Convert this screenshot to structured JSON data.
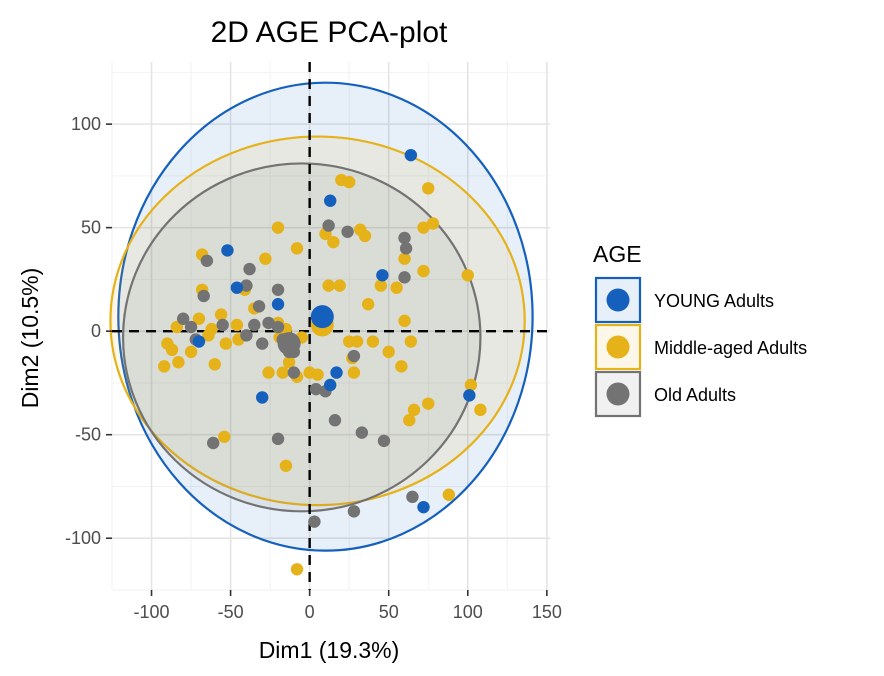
{
  "chart_data": {
    "type": "scatter",
    "title": "2D AGE PCA-plot",
    "xlabel": "Dim1 (19.3%)",
    "ylabel": "Dim2 (10.5%)",
    "xlim": [
      -125,
      152
    ],
    "ylim": [
      -125,
      130
    ],
    "x_ticks": [
      -100,
      -50,
      0,
      50,
      100,
      150
    ],
    "x_tick_labels": [
      "-100",
      "-50",
      "0",
      "50",
      "100",
      "150"
    ],
    "y_ticks": [
      -100,
      -50,
      0,
      50,
      100
    ],
    "y_tick_labels": [
      "-100",
      "-50",
      "0",
      "50",
      "100"
    ],
    "grid": true,
    "reference_lines": {
      "x": 0,
      "y": 0,
      "style": "dashed"
    },
    "legend": {
      "title": "AGE",
      "position": "right"
    },
    "series": [
      {
        "name": "YOUNG Adults",
        "color": "#1560bd",
        "ellipse": {
          "cx": 10,
          "cy": 7,
          "rx": 131,
          "ry": 113
        },
        "centroid": [
          8,
          7
        ],
        "points": [
          [
            64,
            85
          ],
          [
            13,
            63
          ],
          [
            -52,
            39
          ],
          [
            -46,
            21
          ],
          [
            -20,
            13
          ],
          [
            46,
            27
          ],
          [
            101,
            -31
          ],
          [
            -30,
            -32
          ],
          [
            17,
            -20
          ],
          [
            13,
            -26
          ],
          [
            72,
            -85
          ],
          [
            -70,
            -5
          ]
        ]
      },
      {
        "name": "Middle-aged Adults",
        "color": "#e6b21a",
        "ellipse": {
          "cx": 5,
          "cy": 5,
          "rx": 131,
          "ry": 89
        },
        "centroid": [
          8,
          3
        ],
        "points": [
          [
            20,
            73
          ],
          [
            25,
            72
          ],
          [
            75,
            69
          ],
          [
            78,
            52
          ],
          [
            72,
            50
          ],
          [
            -20,
            50
          ],
          [
            10,
            47
          ],
          [
            32,
            49
          ],
          [
            35,
            46
          ],
          [
            -8,
            40
          ],
          [
            -68,
            37
          ],
          [
            -28,
            35
          ],
          [
            15,
            43
          ],
          [
            60,
            35
          ],
          [
            100,
            27
          ],
          [
            72,
            29
          ],
          [
            -68,
            20
          ],
          [
            -41,
            20
          ],
          [
            12,
            22
          ],
          [
            19,
            22
          ],
          [
            45,
            22
          ],
          [
            55,
            21
          ],
          [
            37,
            13
          ],
          [
            -56,
            8
          ],
          [
            -35,
            11
          ],
          [
            -70,
            6
          ],
          [
            -46,
            3
          ],
          [
            -62,
            1
          ],
          [
            -84,
            2
          ],
          [
            -20,
            4
          ],
          [
            -15,
            1
          ],
          [
            -5,
            -3
          ],
          [
            -90,
            -6
          ],
          [
            -87,
            -9
          ],
          [
            -64,
            -2
          ],
          [
            -45,
            -4
          ],
          [
            -53,
            -6
          ],
          [
            -75,
            -10
          ],
          [
            -83,
            -15
          ],
          [
            -92,
            -17
          ],
          [
            -60,
            -16
          ],
          [
            -13,
            -15
          ],
          [
            -26,
            -20
          ],
          [
            -17,
            -20
          ],
          [
            -8,
            -22
          ],
          [
            0,
            -20
          ],
          [
            5,
            -21
          ],
          [
            25,
            -5
          ],
          [
            28,
            -20
          ],
          [
            30,
            -5
          ],
          [
            40,
            -5
          ],
          [
            50,
            -10
          ],
          [
            58,
            -17
          ],
          [
            60,
            5
          ],
          [
            64,
            -5
          ],
          [
            75,
            -35
          ],
          [
            66,
            -38
          ],
          [
            63,
            -43
          ],
          [
            102,
            -26
          ],
          [
            108,
            -38
          ],
          [
            88,
            -79
          ],
          [
            -54,
            -51
          ],
          [
            -15,
            -65
          ],
          [
            -8,
            -115
          ],
          [
            -19,
            -3
          ],
          [
            27,
            -13
          ]
        ]
      },
      {
        "name": "Old Adults",
        "color": "#737373",
        "ellipse": {
          "cx": -5,
          "cy": -3,
          "rx": 113,
          "ry": 84
        },
        "centroid": [
          -13,
          -6
        ],
        "points": [
          [
            -65,
            34
          ],
          [
            -38,
            30
          ],
          [
            -40,
            22
          ],
          [
            -20,
            20
          ],
          [
            -67,
            17
          ],
          [
            -32,
            12
          ],
          [
            12,
            51
          ],
          [
            24,
            48
          ],
          [
            60,
            45
          ],
          [
            61,
            40
          ],
          [
            60,
            26
          ],
          [
            -80,
            6
          ],
          [
            -75,
            2
          ],
          [
            -55,
            3
          ],
          [
            -35,
            3
          ],
          [
            -26,
            4
          ],
          [
            -20,
            2
          ],
          [
            -17,
            -4
          ],
          [
            -40,
            -2
          ],
          [
            -72,
            -4
          ],
          [
            -10,
            -20
          ],
          [
            4,
            -28
          ],
          [
            16,
            -43
          ],
          [
            10,
            -29
          ],
          [
            33,
            -49
          ],
          [
            47,
            -53
          ],
          [
            65,
            -80
          ],
          [
            28,
            -87
          ],
          [
            3,
            -92
          ],
          [
            -20,
            -52
          ],
          [
            -61,
            -54
          ],
          [
            -30,
            -6
          ],
          [
            -10,
            -10
          ],
          [
            -13,
            -10
          ],
          [
            28,
            -12
          ]
        ]
      }
    ]
  }
}
